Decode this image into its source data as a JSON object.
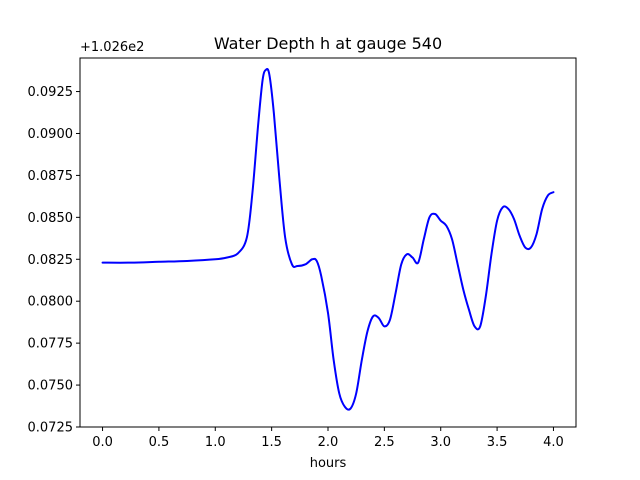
{
  "chart_data": {
    "type": "line",
    "title": "Water Depth h at gauge 540",
    "xlabel": "hours",
    "ylabel": "",
    "offset_label": "+1.026e2",
    "xlim": [
      -0.2,
      4.2
    ],
    "ylim": [
      0.0725,
      0.0945
    ],
    "xticks": [
      0.0,
      0.5,
      1.0,
      1.5,
      2.0,
      2.5,
      3.0,
      3.5,
      4.0
    ],
    "xtick_labels": [
      "0.0",
      "0.5",
      "1.0",
      "1.5",
      "2.0",
      "2.5",
      "3.0",
      "3.5",
      "4.0"
    ],
    "yticks": [
      0.0725,
      0.075,
      0.0775,
      0.08,
      0.0825,
      0.085,
      0.0875,
      0.09,
      0.0925
    ],
    "ytick_labels": [
      "0.0725",
      "0.0750",
      "0.0775",
      "0.0800",
      "0.0825",
      "0.0850",
      "0.0875",
      "0.0900",
      "0.0925"
    ],
    "grid": false,
    "line_color": "#0000ff",
    "series": [
      {
        "name": "",
        "x": [
          0.0,
          0.25,
          0.5,
          0.75,
          1.0,
          1.1,
          1.2,
          1.28,
          1.33,
          1.38,
          1.42,
          1.45,
          1.48,
          1.52,
          1.57,
          1.62,
          1.68,
          1.73,
          1.8,
          1.86,
          1.9,
          1.94,
          2.0,
          2.05,
          2.1,
          2.15,
          2.2,
          2.25,
          2.3,
          2.35,
          2.4,
          2.45,
          2.5,
          2.55,
          2.6,
          2.65,
          2.7,
          2.75,
          2.8,
          2.85,
          2.9,
          2.95,
          3.0,
          3.05,
          3.1,
          3.15,
          3.2,
          3.25,
          3.3,
          3.35,
          3.4,
          3.45,
          3.5,
          3.55,
          3.6,
          3.65,
          3.7,
          3.75,
          3.8,
          3.85,
          3.9,
          3.95,
          4.0
        ],
        "y": [
          0.0823,
          0.0823,
          0.08235,
          0.0824,
          0.0825,
          0.0826,
          0.08285,
          0.0838,
          0.0865,
          0.0905,
          0.0932,
          0.0938,
          0.0935,
          0.0912,
          0.0872,
          0.0838,
          0.0822,
          0.0821,
          0.0822,
          0.0825,
          0.0824,
          0.0815,
          0.0793,
          0.0765,
          0.0745,
          0.0737,
          0.0736,
          0.0745,
          0.0765,
          0.0782,
          0.0791,
          0.079,
          0.0785,
          0.0789,
          0.0805,
          0.0822,
          0.0828,
          0.0826,
          0.0823,
          0.0837,
          0.085,
          0.0852,
          0.0848,
          0.0845,
          0.0837,
          0.0822,
          0.0807,
          0.0795,
          0.0785,
          0.0785,
          0.0803,
          0.0828,
          0.0848,
          0.0856,
          0.0855,
          0.0849,
          0.0839,
          0.0832,
          0.0832,
          0.084,
          0.0855,
          0.0863,
          0.0865
        ]
      }
    ]
  }
}
